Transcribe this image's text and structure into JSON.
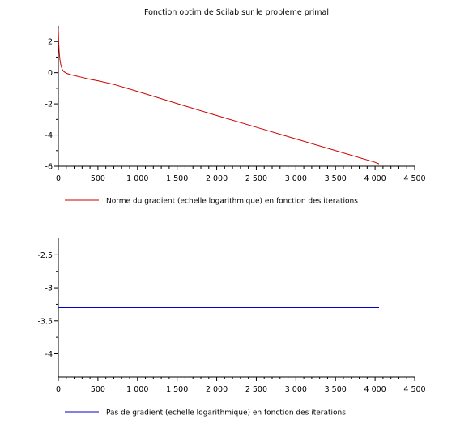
{
  "chart_data": [
    {
      "type": "line",
      "title": "Fonction optim de Scilab sur le probleme primal",
      "xlabel": "",
      "ylabel": "",
      "xlim": [
        0,
        4500
      ],
      "ylim": [
        -6,
        3
      ],
      "x_ticks": [
        0,
        500,
        1000,
        1500,
        2000,
        2500,
        3000,
        3500,
        4000,
        4500
      ],
      "x_tick_labels": [
        "0",
        "500",
        "1 000",
        "1 500",
        "2 000",
        "2 500",
        "3 000",
        "3 500",
        "4 000",
        "4 500"
      ],
      "y_ticks": [
        2,
        0,
        -2,
        -4,
        -6
      ],
      "y_tick_labels": [
        "2",
        "0",
        "-2",
        "-4",
        "-6"
      ],
      "grid": false,
      "legend_position": "bottom",
      "series": [
        {
          "name": "Norme du gradient (echelle logarithmique) en fonction des iterations",
          "color": "#cc0000",
          "x": [
            0,
            5,
            10,
            15,
            20,
            30,
            40,
            50,
            70,
            100,
            150,
            200,
            300,
            400,
            500,
            700,
            1000,
            1500,
            2000,
            2500,
            3000,
            3500,
            4000,
            4050
          ],
          "y": [
            2.8,
            1.9,
            1.4,
            1.1,
            0.85,
            0.55,
            0.35,
            0.2,
            0.07,
            -0.03,
            -0.12,
            -0.18,
            -0.3,
            -0.42,
            -0.52,
            -0.75,
            -1.2,
            -1.98,
            -2.75,
            -3.5,
            -4.25,
            -5.0,
            -5.75,
            -5.85
          ]
        }
      ]
    },
    {
      "type": "line",
      "title": "",
      "xlabel": "",
      "ylabel": "",
      "xlim": [
        0,
        4500
      ],
      "ylim": [
        -4.35,
        -2.25
      ],
      "x_ticks": [
        0,
        500,
        1000,
        1500,
        2000,
        2500,
        3000,
        3500,
        4000,
        4500
      ],
      "x_tick_labels": [
        "0",
        "500",
        "1 000",
        "1 500",
        "2 000",
        "2 500",
        "3 000",
        "3 500",
        "4 000",
        "4 500"
      ],
      "y_ticks": [
        -2.5,
        -3,
        -3.5,
        -4
      ],
      "y_tick_labels": [
        "-2.5",
        "-3",
        "-3.5",
        "-4"
      ],
      "grid": false,
      "legend_position": "bottom",
      "series": [
        {
          "name": "Pas de gradient (echelle logarithmique) en fonction des iterations",
          "color": "#0000cc",
          "x": [
            0,
            4050
          ],
          "y": [
            -3.3,
            -3.3
          ]
        }
      ]
    }
  ]
}
